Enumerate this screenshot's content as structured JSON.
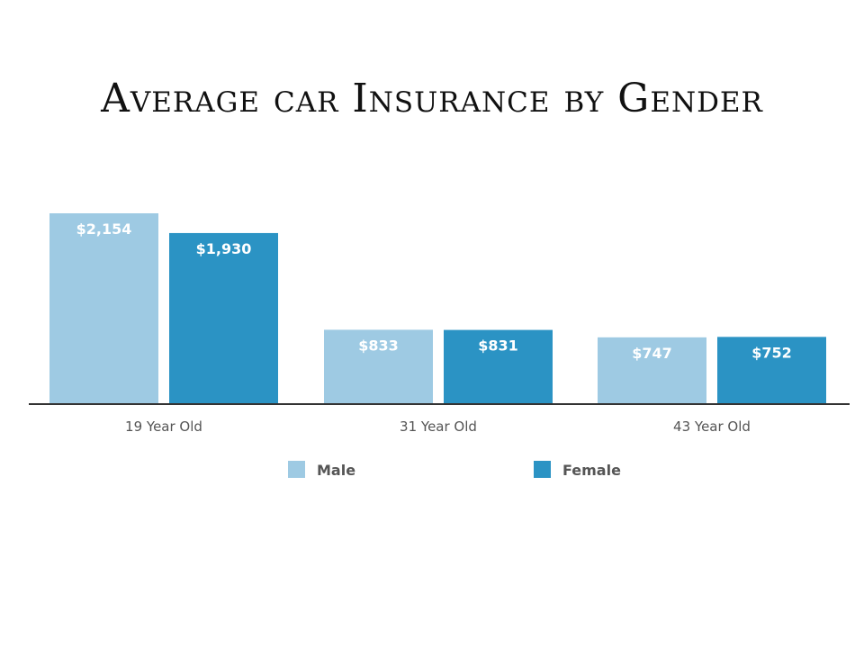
{
  "colors": {
    "male": "#9ecae3",
    "female": "#2b93c4",
    "axis": "#333333"
  },
  "chart_data": {
    "type": "bar",
    "title": "Average car Insurance by Gender",
    "categories": [
      "19 Year Old",
      "31 Year Old",
      "43 Year Old"
    ],
    "series": [
      {
        "name": "Male",
        "values": [
          2154,
          833,
          747
        ],
        "labels": [
          "$2,154",
          "$833",
          "$747"
        ]
      },
      {
        "name": "Female",
        "values": [
          1930,
          831,
          752
        ],
        "labels": [
          "$1,930",
          "$831",
          "$752"
        ]
      }
    ],
    "ylim": [
      0,
      2154
    ],
    "legend_position": "bottom",
    "grid": false
  }
}
